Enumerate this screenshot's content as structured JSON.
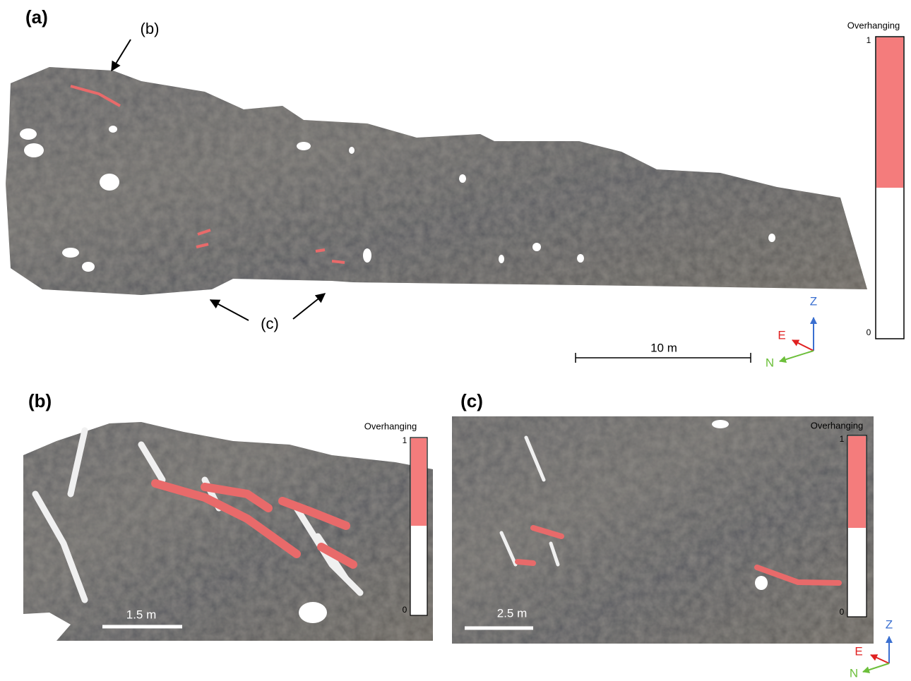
{
  "panels": [
    {
      "label": "(a)",
      "annotations": [
        "(b)",
        "(c)"
      ],
      "colorbar": {
        "title": "Overhanging",
        "max": 1,
        "min": 0
      },
      "scale_bar": "10 m",
      "axes": {
        "z": "Z",
        "e": "E",
        "n": "N"
      }
    },
    {
      "label": "(b)",
      "colorbar": {
        "title": "Overhanging",
        "max": 1,
        "min": 0
      },
      "scale_bar": "1.5 m"
    },
    {
      "label": "(c)",
      "colorbar": {
        "title": "Overhanging",
        "max": 1,
        "min": 0
      },
      "scale_bar": "2.5 m",
      "axes": {
        "z": "Z",
        "e": "E",
        "n": "N"
      }
    }
  ]
}
